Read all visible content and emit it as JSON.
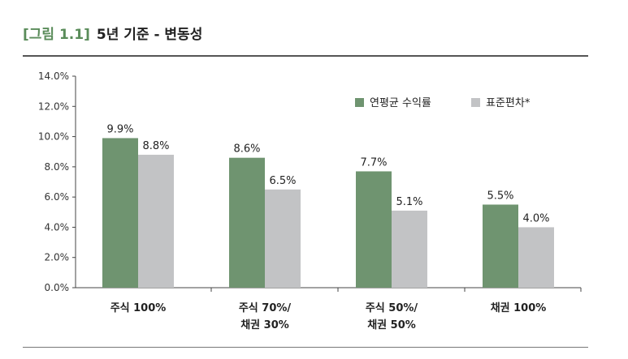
{
  "figure": {
    "tag": "[그림 1.1]",
    "title": "5년 기준 - 변동성"
  },
  "colors": {
    "series1": "#6f9470",
    "series2": "#c2c3c5",
    "tag": "#5a8c5a"
  },
  "chart_data": {
    "type": "bar",
    "categories": [
      [
        "주식 100%"
      ],
      [
        "주식 70%/",
        "채권 30%"
      ],
      [
        "주식 50%/",
        "채권 50%"
      ],
      [
        "채권 100%"
      ]
    ],
    "series": [
      {
        "name": "연평균 수익률",
        "values": [
          9.9,
          8.6,
          7.7,
          5.5
        ],
        "labels": [
          "9.9%",
          "8.6%",
          "7.7%",
          "5.5%"
        ]
      },
      {
        "name": "표준편차*",
        "values": [
          8.8,
          6.5,
          5.1,
          4.0
        ],
        "labels": [
          "8.8%",
          "6.5%",
          "5.1%",
          "4.0%"
        ]
      }
    ],
    "yticks": [
      0,
      2,
      4,
      6,
      8,
      10,
      12,
      14
    ],
    "ytick_labels": [
      "0.0%",
      "2.0%",
      "4.0%",
      "6.0%",
      "8.0%",
      "10.0%",
      "12.0%",
      "14.0%"
    ],
    "ylim": [
      0,
      14
    ],
    "grid": false,
    "legend_position": "top-right"
  }
}
